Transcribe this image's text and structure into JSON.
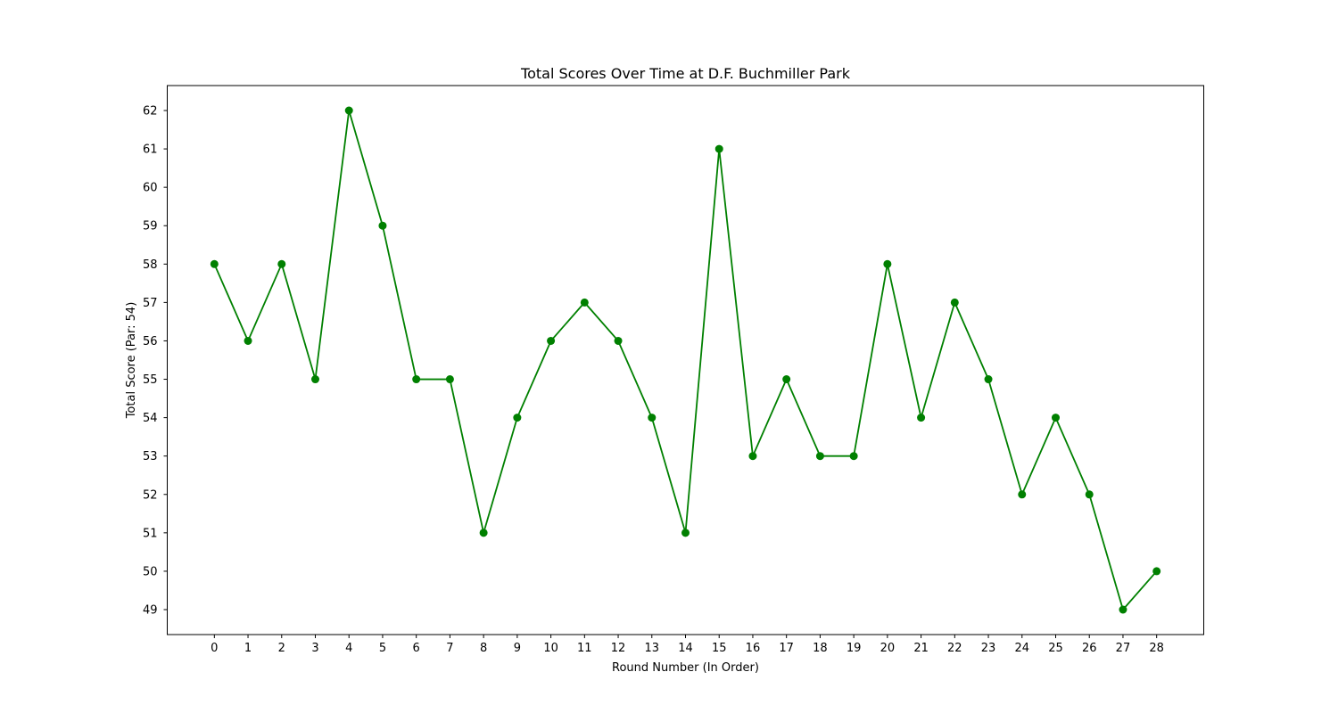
{
  "chart_data": {
    "type": "line",
    "title": "Total Scores Over Time at D.F. Buchmiller Park",
    "xlabel": "Round Number (In Order)",
    "ylabel": "Total Score (Par: 54)",
    "x": [
      0,
      1,
      2,
      3,
      4,
      5,
      6,
      7,
      8,
      9,
      10,
      11,
      12,
      13,
      14,
      15,
      16,
      17,
      18,
      19,
      20,
      21,
      22,
      23,
      24,
      25,
      26,
      27,
      28
    ],
    "series": [
      {
        "values": [
          58,
          56,
          58,
          55,
          62,
          59,
          55,
          55,
          51,
          54,
          56,
          57,
          56,
          54,
          51,
          61,
          53,
          55,
          53,
          53,
          58,
          54,
          57,
          55,
          52,
          54,
          52,
          49,
          50
        ],
        "color": "#008000",
        "marker": "circle"
      }
    ],
    "xlim": [
      -1.4,
      29.4
    ],
    "ylim": [
      48.35,
      62.65
    ],
    "yticks": [
      49,
      50,
      51,
      52,
      53,
      54,
      55,
      56,
      57,
      58,
      59,
      60,
      61,
      62
    ],
    "grid": false,
    "legend": "none"
  }
}
